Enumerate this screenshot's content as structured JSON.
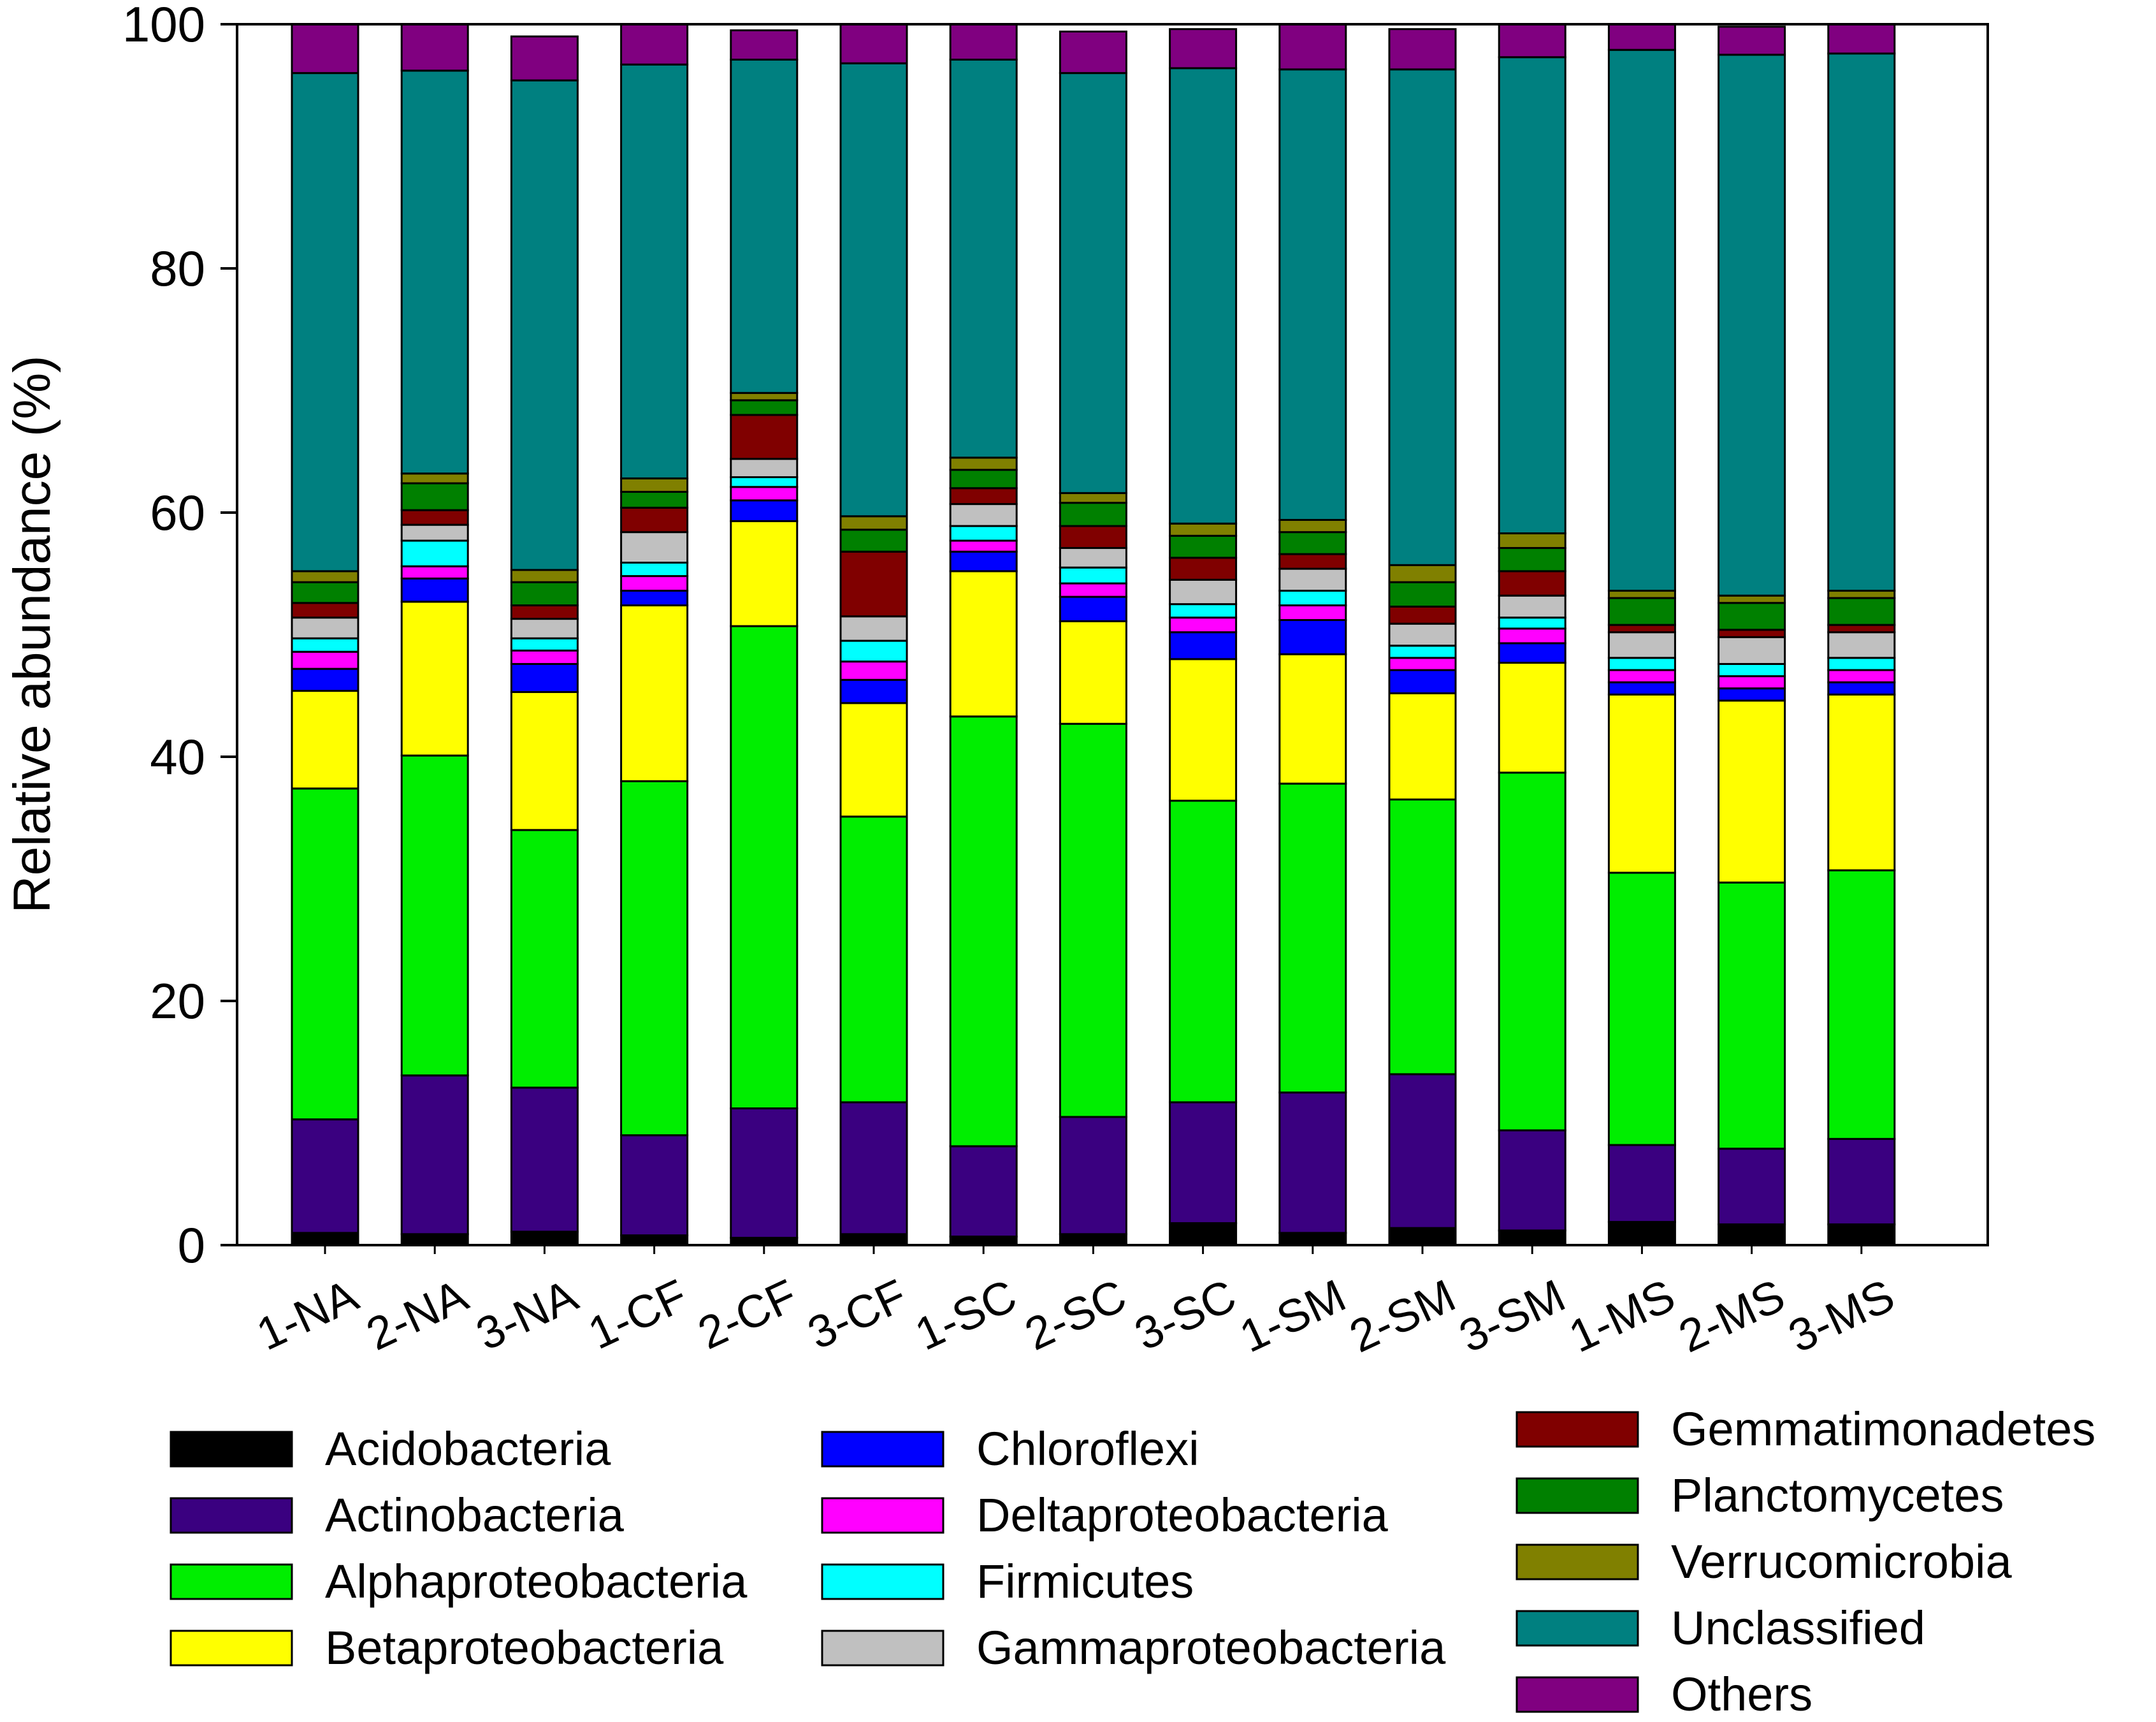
{
  "chart_data": {
    "type": "bar",
    "stacked": true,
    "ylabel": "Relative abundance (%)",
    "xlabel": "",
    "ylim": [
      0,
      100
    ],
    "yticks": [
      0,
      20,
      40,
      60,
      80,
      100
    ],
    "legend_position": "bottom",
    "categories": [
      "1-NA",
      "2-NA",
      "3-NA",
      "1-CF",
      "2-CF",
      "3-CF",
      "1-SC",
      "2-SC",
      "3-SC",
      "1-SM",
      "2-SM",
      "3-SM",
      "1-MS",
      "2-MS",
      "3-MS"
    ],
    "series": [
      {
        "name": "Acidobacteria",
        "color": "#000000",
        "values": [
          1.0,
          0.9,
          1.1,
          0.8,
          0.6,
          0.9,
          0.7,
          0.9,
          1.8,
          1.0,
          1.4,
          1.2,
          1.9,
          1.7,
          1.7
        ]
      },
      {
        "name": "Actinobacteria",
        "color": "#3a0080",
        "values": [
          9.3,
          13.0,
          11.8,
          8.2,
          10.6,
          10.8,
          7.4,
          9.6,
          9.9,
          11.5,
          12.6,
          8.2,
          6.3,
          6.2,
          7.0
        ]
      },
      {
        "name": "Alphaproteobacteria",
        "color": "#00ee00",
        "values": [
          27.1,
          26.2,
          21.1,
          29.0,
          39.5,
          23.4,
          35.2,
          32.2,
          24.7,
          25.3,
          22.5,
          29.3,
          22.3,
          21.8,
          22.0
        ]
      },
      {
        "name": "Betaproteobacteria",
        "color": "#ffff00",
        "values": [
          8.0,
          12.6,
          11.3,
          14.4,
          8.6,
          9.3,
          11.9,
          8.4,
          11.6,
          10.6,
          8.7,
          9.0,
          14.6,
          14.9,
          14.4
        ]
      },
      {
        "name": "Chloroflexi",
        "color": "#0000ff",
        "values": [
          1.8,
          1.9,
          2.3,
          1.2,
          1.7,
          1.9,
          1.6,
          2.0,
          2.2,
          2.8,
          1.9,
          1.6,
          1.0,
          1.0,
          1.0
        ]
      },
      {
        "name": "Deltaproteobacteria",
        "color": "#ff00ff",
        "values": [
          1.4,
          1.0,
          1.1,
          1.2,
          1.1,
          1.5,
          0.9,
          1.1,
          1.2,
          1.2,
          1.0,
          1.2,
          1.0,
          1.0,
          1.0
        ]
      },
      {
        "name": "Firmicutes",
        "color": "#00ffff",
        "values": [
          1.1,
          2.1,
          1.0,
          1.1,
          0.8,
          1.7,
          1.2,
          1.3,
          1.1,
          1.2,
          1.0,
          0.9,
          1.0,
          1.0,
          1.0
        ]
      },
      {
        "name": "Gammaproteobacteria",
        "color": "#c0c0c0",
        "values": [
          1.7,
          1.3,
          1.6,
          2.5,
          1.5,
          2.0,
          1.8,
          1.6,
          2.0,
          1.8,
          1.8,
          1.8,
          2.1,
          2.2,
          2.1
        ]
      },
      {
        "name": "Gemmatimonadetes",
        "color": "#800000",
        "values": [
          1.2,
          1.2,
          1.1,
          2.0,
          3.6,
          5.3,
          1.3,
          1.8,
          1.8,
          1.2,
          1.4,
          2.0,
          0.6,
          0.6,
          0.6
        ]
      },
      {
        "name": "Planctomycetes",
        "color": "#008000",
        "values": [
          1.7,
          2.2,
          1.9,
          1.3,
          1.2,
          1.8,
          1.5,
          1.9,
          1.8,
          1.8,
          2.0,
          1.9,
          2.2,
          2.2,
          2.2
        ]
      },
      {
        "name": "Verrucomicrobia",
        "color": "#808000",
        "values": [
          0.9,
          0.8,
          1.0,
          1.1,
          0.6,
          1.1,
          1.0,
          0.8,
          1.0,
          1.0,
          1.4,
          1.2,
          0.6,
          0.6,
          0.6
        ]
      },
      {
        "name": "Unclassified",
        "color": "#008080",
        "values": [
          40.8,
          33.0,
          40.1,
          33.9,
          27.3,
          37.1,
          32.6,
          34.4,
          37.3,
          36.9,
          40.6,
          39.0,
          44.3,
          44.3,
          44.0
        ]
      },
      {
        "name": "Others",
        "color": "#800080",
        "values": [
          4.0,
          3.8,
          3.6,
          3.3,
          2.4,
          3.2,
          2.9,
          3.4,
          3.2,
          3.7,
          3.3,
          2.7,
          2.1,
          2.3,
          2.4
        ]
      }
    ]
  }
}
